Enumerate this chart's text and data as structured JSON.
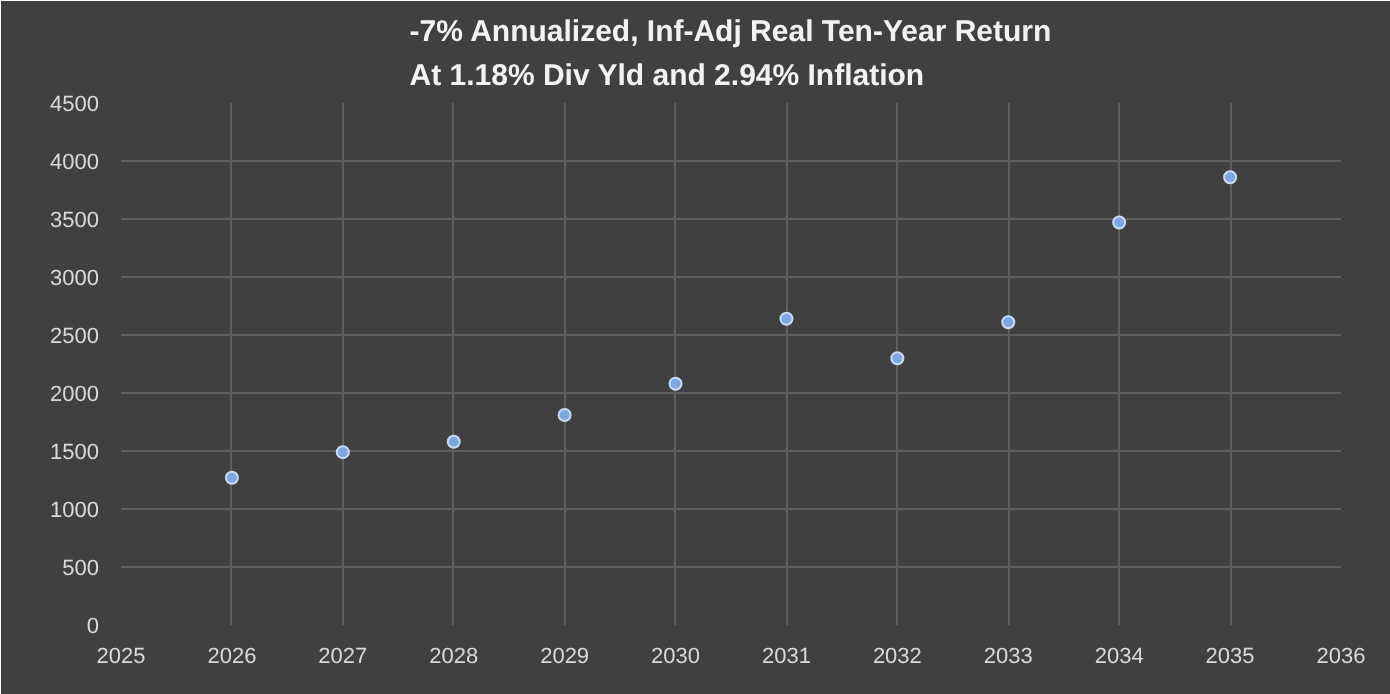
{
  "chart_data": {
    "type": "scatter",
    "title": "-7% Annualized, Inf-Adj Real Ten-Year Return\nAt 1.18% Div Yld and 2.94% Inflation",
    "x": [
      2026,
      2027,
      2028,
      2029,
      2030,
      2031,
      2032,
      2033,
      2034,
      2035
    ],
    "series": [
      {
        "color": "#7ea6e0",
        "values": [
          1270,
          1490,
          1580,
          1810,
          2080,
          2640,
          2300,
          2610,
          3470,
          3860
        ]
      }
    ],
    "xlim": [
      2025,
      2036
    ],
    "xticks": [
      2025,
      2026,
      2027,
      2028,
      2029,
      2030,
      2031,
      2032,
      2033,
      2034,
      2035,
      2036
    ],
    "ylim": [
      0,
      4500
    ],
    "yticks": [
      0,
      500,
      1000,
      1500,
      2000,
      2500,
      3000,
      3500,
      4000,
      4500
    ],
    "grid": true,
    "marker": "circle"
  }
}
